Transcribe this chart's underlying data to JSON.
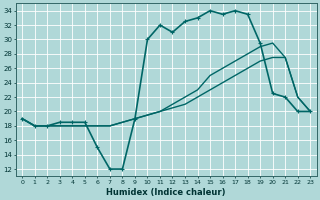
{
  "xlabel": "Humidex (Indice chaleur)",
  "bg_color": "#b0d8d8",
  "xlim": [
    -0.5,
    23.5
  ],
  "ylim": [
    11,
    35
  ],
  "yticks": [
    12,
    14,
    16,
    18,
    20,
    22,
    24,
    26,
    28,
    30,
    32,
    34
  ],
  "xticks": [
    0,
    1,
    2,
    3,
    4,
    5,
    6,
    7,
    8,
    9,
    10,
    11,
    12,
    13,
    14,
    15,
    16,
    17,
    18,
    19,
    20,
    21,
    22,
    23
  ],
  "series": [
    {
      "x": [
        0,
        1,
        2,
        3,
        4,
        5,
        6,
        7,
        8,
        9,
        10,
        11,
        12,
        13,
        14,
        15,
        16,
        17,
        18,
        19,
        20,
        21,
        22,
        23
      ],
      "y": [
        19,
        18,
        18,
        18.5,
        18.5,
        18.5,
        15,
        12,
        12,
        19,
        30,
        32,
        31,
        32.5,
        33,
        34,
        33.5,
        34,
        33.5,
        29.5,
        22.5,
        22,
        20,
        20
      ],
      "color": "#006666",
      "lw": 1.2,
      "marker": "+",
      "ms": 3.5
    },
    {
      "x": [
        0,
        1,
        2,
        3,
        4,
        5,
        6,
        7,
        8,
        9,
        10,
        11,
        12,
        13,
        14,
        15,
        16,
        17,
        18,
        19,
        20,
        21,
        22,
        23
      ],
      "y": [
        19,
        18,
        18,
        18,
        18,
        18,
        18,
        18,
        18.5,
        19,
        19.5,
        20,
        20.5,
        21,
        22,
        23,
        24,
        25,
        26,
        27,
        27.5,
        27.5,
        22,
        20
      ],
      "color": "#006666",
      "lw": 1.0,
      "marker": null,
      "ms": 0
    },
    {
      "x": [
        0,
        1,
        2,
        3,
        4,
        5,
        6,
        7,
        8,
        9,
        10,
        11,
        12,
        13,
        14,
        15,
        16,
        17,
        18,
        19,
        20,
        21,
        22,
        23
      ],
      "y": [
        19,
        18,
        18,
        18,
        18,
        18,
        18,
        18,
        18.5,
        19,
        19.5,
        20,
        21,
        22,
        23,
        25,
        26,
        27,
        28,
        29,
        29.5,
        27.5,
        22,
        20
      ],
      "color": "#006666",
      "lw": 1.0,
      "marker": null,
      "ms": 0
    }
  ]
}
